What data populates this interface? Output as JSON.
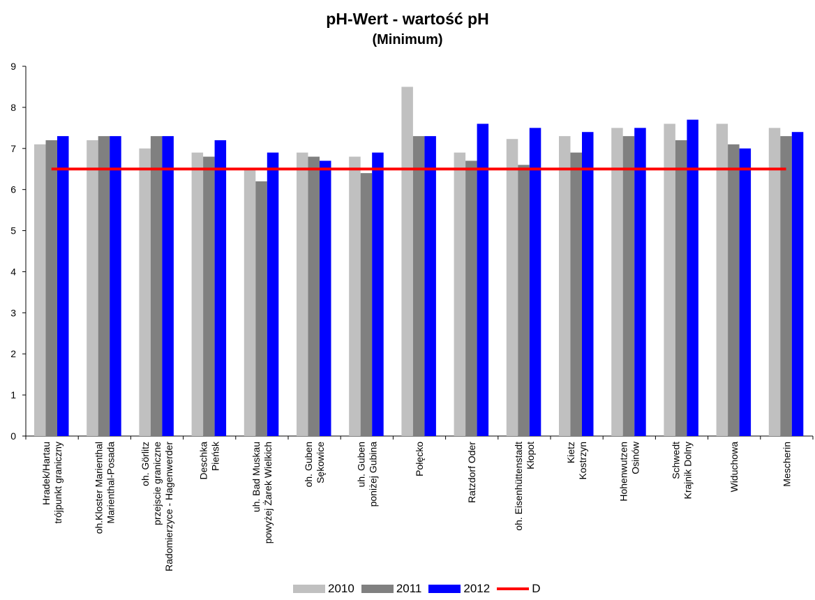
{
  "chart_data": {
    "type": "bar",
    "title": "pH-Wert - wartość pH",
    "subtitle": "(Minimum)",
    "categories": [
      [
        "Hradek/Hartau",
        "trójpunkt graniczny"
      ],
      [
        "oh.Kloster Marienthal",
        "Marienthal-Posada"
      ],
      [
        "oh. Görlitz",
        "przejscie graniczne",
        "Radomierzyce - Hagenwerder"
      ],
      [
        "Deschka",
        "Pieńsk"
      ],
      [
        "uh. Bad Muskau",
        "powyżej Żarek Wielkich"
      ],
      [
        "oh. Guben",
        "Sękowice"
      ],
      [
        "uh. Guben",
        "poniżej Gubina"
      ],
      [
        "Połęcko"
      ],
      [
        "Ratzdorf Oder"
      ],
      [
        "oh. Eisenhüttenstadt",
        "Kłopot"
      ],
      [
        "Kietz",
        "Kostrzyn"
      ],
      [
        "Hohenwutzen",
        "Osinów"
      ],
      [
        "Schwedt",
        "Krajnik Dolny"
      ],
      [
        "Widuchowa"
      ],
      [
        "Mescherin"
      ]
    ],
    "series": [
      {
        "name": "2010",
        "color": "#c0c0c0",
        "values": [
          7.1,
          7.2,
          7.0,
          6.9,
          6.5,
          6.9,
          6.8,
          8.5,
          6.9,
          7.23,
          7.3,
          7.5,
          7.6,
          7.6,
          7.5
        ]
      },
      {
        "name": "2011",
        "color": "#808080",
        "values": [
          7.2,
          7.3,
          7.3,
          6.8,
          6.2,
          6.8,
          6.4,
          7.3,
          6.7,
          6.6,
          6.9,
          7.3,
          7.2,
          7.1,
          7.3
        ]
      },
      {
        "name": "2012",
        "color": "#0000ff",
        "values": [
          7.3,
          7.3,
          7.3,
          7.2,
          6.9,
          6.7,
          6.9,
          7.3,
          7.6,
          7.5,
          7.4,
          7.5,
          7.7,
          7.0,
          7.4
        ]
      }
    ],
    "reference_line": {
      "name": "D",
      "value": 6.5,
      "color": "#ff0000"
    },
    "ylim": [
      0,
      9
    ],
    "yticks": [
      0,
      1,
      2,
      3,
      4,
      5,
      6,
      7,
      8,
      9
    ],
    "grid": false,
    "legend_position": "bottom"
  }
}
